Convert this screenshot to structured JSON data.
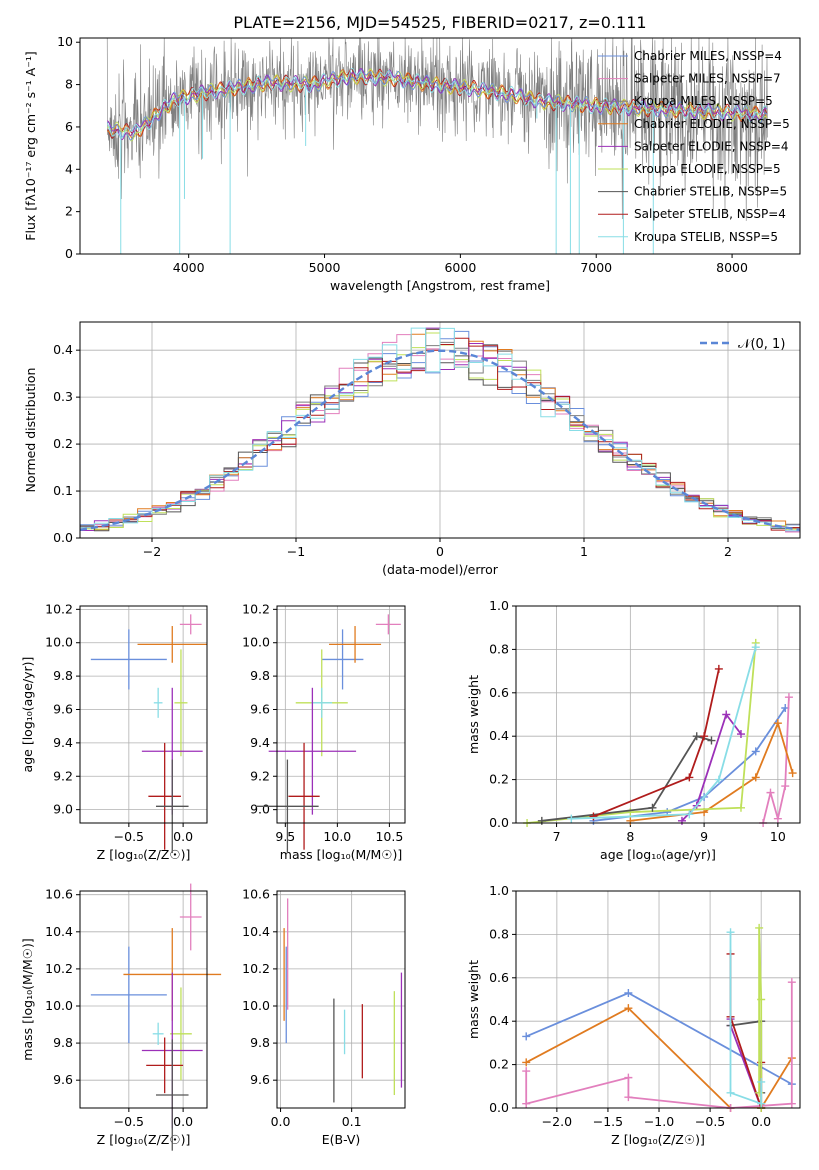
{
  "figure": {
    "title": "PLATE=2156, MJD=54525, FIBERID=0217, z=0.111"
  },
  "colors": {
    "chabrier_miles": "#6a8fdc",
    "salpeter_miles": "#e27fbd",
    "kroupa_miles": "#7f7f7f",
    "chabrier_elodie": "#e07b20",
    "salpeter_elodie": "#9b30b8",
    "kroupa_elodie": "#bfe05a",
    "chabrier_stelib": "#555555",
    "salpeter_stelib": "#b01c1c",
    "kroupa_stelib": "#88dde6",
    "normal_curve": "#5a86d6",
    "grid": "#b0b0b0"
  },
  "chart_data": [
    {
      "id": "spectrum",
      "type": "line",
      "xlabel": "wavelength [Angstrom, rest frame]",
      "ylabel": "Flux [fλ10⁻¹⁷ erg cm⁻² s⁻¹ A⁻¹]",
      "xlim": [
        3200,
        8500
      ],
      "ylim": [
        0,
        10.2
      ],
      "xticks": [
        4000,
        5000,
        6000,
        7000,
        8000
      ],
      "yticks": [
        0,
        2,
        4,
        6,
        8,
        10
      ],
      "grid": false,
      "legend_position": "right",
      "legend": [
        {
          "label": "Chabrier MILES, NSSP=4",
          "color_key": "chabrier_miles"
        },
        {
          "label": "Salpeter MILES, NSSP=7",
          "color_key": "salpeter_miles"
        },
        {
          "label": "Kroupa MILES, NSSP=5",
          "color_key": "kroupa_miles"
        },
        {
          "label": "Chabrier ELODIE, NSSP=5",
          "color_key": "chabrier_elodie"
        },
        {
          "label": "Salpeter ELODIE, NSSP=4",
          "color_key": "salpeter_elodie"
        },
        {
          "label": "Kroupa ELODIE, NSSP=5",
          "color_key": "kroupa_elodie"
        },
        {
          "label": "Chabrier STELIB, NSSP=5",
          "color_key": "chabrier_stelib"
        },
        {
          "label": "Salpeter STELIB, NSSP=4",
          "color_key": "salpeter_stelib"
        },
        {
          "label": "Kroupa STELIB, NSSP=5",
          "color_key": "kroupa_stelib"
        }
      ],
      "continuum": [
        [
          3400,
          5.9
        ],
        [
          3600,
          5.7
        ],
        [
          3700,
          6.2
        ],
        [
          3800,
          6.8
        ],
        [
          3900,
          7.3
        ],
        [
          4100,
          7.6
        ],
        [
          4300,
          7.8
        ],
        [
          4600,
          8.1
        ],
        [
          4900,
          8.0
        ],
        [
          5200,
          8.4
        ],
        [
          5500,
          8.3
        ],
        [
          5800,
          8.0
        ],
        [
          6100,
          7.8
        ],
        [
          6400,
          7.5
        ],
        [
          6600,
          7.2
        ],
        [
          6800,
          7.1
        ],
        [
          7000,
          7.0
        ],
        [
          7300,
          6.9
        ],
        [
          7600,
          6.8
        ],
        [
          7900,
          6.7
        ],
        [
          8200,
          6.6
        ]
      ],
      "absorption_dips": [
        [
          3500,
          0.0
        ],
        [
          3934,
          0.0
        ],
        [
          3969,
          2.6
        ],
        [
          4102,
          4.5
        ],
        [
          4305,
          0.0
        ],
        [
          4861,
          5.1
        ],
        [
          6563,
          6.4
        ],
        [
          6705,
          0.0
        ],
        [
          6810,
          0.0
        ],
        [
          6875,
          0.0
        ],
        [
          7200,
          0.0
        ],
        [
          7420,
          0.0
        ]
      ]
    },
    {
      "id": "residual-histogram",
      "type": "histogram",
      "xlabel": "(data-model)/error",
      "ylabel": "Normed distribution",
      "xlim": [
        -2.5,
        2.5
      ],
      "ylim": [
        0,
        0.46
      ],
      "xticks": [
        -2,
        -1,
        0,
        1,
        2
      ],
      "yticks": [
        0.0,
        0.1,
        0.2,
        0.3,
        0.4
      ],
      "grid": true,
      "legend_position": "top-right",
      "legend": [
        {
          "label": "𝒩(0, 1)",
          "color_key": "normal_curve"
        }
      ],
      "bin_width": 0.1,
      "bin_start": -2.5,
      "series_color_keys": [
        "chabrier_miles",
        "salpeter_miles",
        "kroupa_miles",
        "chabrier_elodie",
        "salpeter_elodie",
        "kroupa_elodie",
        "chabrier_stelib",
        "salpeter_stelib",
        "kroupa_stelib"
      ]
    },
    {
      "id": "age-vs-Z",
      "type": "scatter",
      "xlabel": "Z [log₁₀(Z/Z☉)]",
      "ylabel": "age  [log₁₀(age/yr)]",
      "xlim": [
        -0.95,
        0.22
      ],
      "ylim": [
        8.92,
        10.22
      ],
      "xticks": [
        -0.5,
        0.0
      ],
      "yticks": [
        9.0,
        9.2,
        9.4,
        9.6,
        9.8,
        10.0,
        10.2
      ],
      "grid": true,
      "points": [
        {
          "color_key": "chabrier_miles",
          "x": -0.5,
          "xerr": 0.35,
          "y": 9.9,
          "yerr": 0.18
        },
        {
          "color_key": "salpeter_miles",
          "x": 0.07,
          "xerr": 0.1,
          "y": 10.11,
          "yerr": 0.06
        },
        {
          "color_key": "chabrier_elodie",
          "x": -0.1,
          "xerr": 0.32,
          "y": 9.99,
          "yerr": 0.11
        },
        {
          "color_key": "kroupa_elodie",
          "x": -0.02,
          "xerr": 0.06,
          "y": 9.64,
          "yerr": 0.32
        },
        {
          "color_key": "kroupa_stelib",
          "x": -0.23,
          "xerr": 0.04,
          "y": 9.64,
          "yerr": 0.09
        },
        {
          "color_key": "salpeter_elodie",
          "x": -0.1,
          "xerr": 0.28,
          "y": 9.35,
          "yerr": 0.38
        },
        {
          "color_key": "salpeter_stelib",
          "x": -0.17,
          "xerr": 0.15,
          "y": 9.08,
          "yerr": 0.32
        },
        {
          "color_key": "chabrier_stelib",
          "x": -0.1,
          "xerr": 0.15,
          "y": 9.02,
          "yerr": 0.28
        }
      ]
    },
    {
      "id": "age-vs-mass",
      "type": "scatter",
      "xlabel": "mass [log₁₀(M/M☉)]",
      "ylabel": "",
      "xlim": [
        9.42,
        10.65
      ],
      "ylim": [
        8.92,
        10.22
      ],
      "xticks": [
        9.5,
        10.0,
        10.5
      ],
      "yticks": [
        9.0,
        9.2,
        9.4,
        9.6,
        9.8,
        10.0,
        10.2
      ],
      "grid": true,
      "points": [
        {
          "color_key": "chabrier_miles",
          "x": 10.05,
          "xerr": 0.2,
          "y": 9.9,
          "yerr": 0.18
        },
        {
          "color_key": "salpeter_miles",
          "x": 10.49,
          "xerr": 0.12,
          "y": 10.11,
          "yerr": 0.06
        },
        {
          "color_key": "chabrier_elodie",
          "x": 10.17,
          "xerr": 0.25,
          "y": 9.99,
          "yerr": 0.11
        },
        {
          "color_key": "kroupa_elodie",
          "x": 9.85,
          "xerr": 0.25,
          "y": 9.64,
          "yerr": 0.32
        },
        {
          "color_key": "kroupa_stelib",
          "x": 9.85,
          "xerr": 0.1,
          "y": 9.64,
          "yerr": 0.09
        },
        {
          "color_key": "salpeter_elodie",
          "x": 9.76,
          "xerr": 0.42,
          "y": 9.35,
          "yerr": 0.38
        },
        {
          "color_key": "salpeter_stelib",
          "x": 9.68,
          "xerr": 0.15,
          "y": 9.08,
          "yerr": 0.32
        },
        {
          "color_key": "chabrier_stelib",
          "x": 9.52,
          "xerr": 0.3,
          "y": 9.02,
          "yerr": 0.28
        }
      ]
    },
    {
      "id": "mass-weight-vs-age",
      "type": "line",
      "xlabel": "age  [log₁₀(age/yr)]",
      "ylabel": "mass weight",
      "xlim": [
        6.45,
        10.3
      ],
      "ylim": [
        0,
        1.0
      ],
      "xticks": [
        7,
        8,
        9,
        10
      ],
      "yticks": [
        0.0,
        0.2,
        0.4,
        0.6,
        0.8,
        1.0
      ],
      "grid": true,
      "series": [
        {
          "color_key": "chabrier_miles",
          "x": [
            7.5,
            8.5,
            9.0,
            9.7,
            10.1
          ],
          "y": [
            0.01,
            0.05,
            0.12,
            0.33,
            0.53
          ]
        },
        {
          "color_key": "salpeter_miles",
          "x": [
            9.8,
            9.9,
            10.0,
            10.1,
            10.15
          ],
          "y": [
            0.0,
            0.14,
            0.02,
            0.17,
            0.58
          ]
        },
        {
          "color_key": "chabrier_elodie",
          "x": [
            8.0,
            9.0,
            9.7,
            10.0,
            10.2
          ],
          "y": [
            0.01,
            0.05,
            0.21,
            0.46,
            0.23
          ]
        },
        {
          "color_key": "salpeter_elodie",
          "x": [
            8.7,
            8.9,
            9.3,
            9.5
          ],
          "y": [
            0.01,
            0.08,
            0.5,
            0.41
          ]
        },
        {
          "color_key": "kroupa_elodie",
          "x": [
            6.6,
            8.0,
            9.5,
            9.7
          ],
          "y": [
            0.0,
            0.05,
            0.07,
            0.83
          ]
        },
        {
          "color_key": "chabrier_stelib",
          "x": [
            6.8,
            8.3,
            8.9,
            9.1
          ],
          "y": [
            0.01,
            0.07,
            0.4,
            0.38
          ]
        },
        {
          "color_key": "salpeter_stelib",
          "x": [
            7.5,
            8.8,
            9.0,
            9.2
          ],
          "y": [
            0.03,
            0.21,
            0.4,
            0.71
          ]
        },
        {
          "color_key": "kroupa_stelib",
          "x": [
            7.2,
            8.8,
            9.2,
            9.7
          ],
          "y": [
            0.02,
            0.04,
            0.2,
            0.81
          ]
        }
      ]
    },
    {
      "id": "mass-vs-Z",
      "type": "scatter",
      "xlabel": "Z [log₁₀(Z/Z☉)]",
      "ylabel": "mass [log₁₀(M/M☉)]",
      "xlim": [
        -0.95,
        0.22
      ],
      "ylim": [
        9.45,
        10.62
      ],
      "xticks": [
        -0.5,
        0.0
      ],
      "yticks": [
        9.6,
        9.8,
        10.0,
        10.2,
        10.4,
        10.6
      ],
      "grid": true,
      "points": [
        {
          "color_key": "chabrier_miles",
          "x": -0.5,
          "xerr": 0.35,
          "y": 10.06,
          "yerr": 0.26
        },
        {
          "color_key": "salpeter_miles",
          "x": 0.07,
          "xerr": 0.1,
          "y": 10.48,
          "yerr": 0.18
        },
        {
          "color_key": "chabrier_elodie",
          "x": -0.1,
          "xerr": 0.45,
          "y": 10.17,
          "yerr": 0.25
        },
        {
          "color_key": "kroupa_elodie",
          "x": -0.02,
          "xerr": 0.1,
          "y": 9.85,
          "yerr": 0.25
        },
        {
          "color_key": "kroupa_stelib",
          "x": -0.23,
          "xerr": 0.05,
          "y": 9.85,
          "yerr": 0.06
        },
        {
          "color_key": "salpeter_elodie",
          "x": -0.1,
          "xerr": 0.28,
          "y": 9.76,
          "yerr": 0.42
        },
        {
          "color_key": "salpeter_stelib",
          "x": -0.17,
          "xerr": 0.17,
          "y": 9.68,
          "yerr": 0.15
        },
        {
          "color_key": "chabrier_stelib",
          "x": -0.1,
          "xerr": 0.15,
          "y": 9.52,
          "yerr": 0.3
        }
      ]
    },
    {
      "id": "mass-vs-ebv",
      "type": "scatter",
      "xlabel": "E(B-V)",
      "ylabel": "",
      "xlim": [
        -0.005,
        0.175
      ],
      "ylim": [
        9.45,
        10.62
      ],
      "xticks": [
        0.0,
        0.1
      ],
      "yticks": [
        9.6,
        9.8,
        10.0,
        10.2,
        10.4,
        10.6
      ],
      "grid": true,
      "points": [
        {
          "color_key": "chabrier_elodie",
          "x": 0.005,
          "y": 10.17,
          "yerr": 0.25
        },
        {
          "color_key": "salpeter_miles",
          "x": 0.01,
          "y": 10.28,
          "yerr": 0.3
        },
        {
          "color_key": "chabrier_miles",
          "x": 0.008,
          "y": 10.06,
          "yerr": 0.26
        },
        {
          "color_key": "chabrier_stelib",
          "x": 0.075,
          "y": 9.76,
          "yerr": 0.28
        },
        {
          "color_key": "kroupa_stelib",
          "x": 0.09,
          "y": 9.86,
          "yerr": 0.12
        },
        {
          "color_key": "salpeter_stelib",
          "x": 0.115,
          "y": 9.81,
          "yerr": 0.2
        },
        {
          "color_key": "kroupa_elodie",
          "x": 0.16,
          "y": 9.8,
          "yerr": 0.28
        },
        {
          "color_key": "salpeter_elodie",
          "x": 0.17,
          "y": 9.87,
          "yerr": 0.31
        }
      ]
    },
    {
      "id": "mass-weight-vs-Z",
      "type": "line",
      "xlabel": "Z [log₁₀(Z/Z☉)]",
      "ylabel": "mass weight",
      "xlim": [
        -2.4,
        0.38
      ],
      "ylim": [
        0,
        1.0
      ],
      "xticks": [
        -2.0,
        -1.5,
        -1.0,
        -0.5,
        0.0
      ],
      "yticks": [
        0.0,
        0.2,
        0.4,
        0.6,
        0.8,
        1.0
      ],
      "grid": true,
      "series": [
        {
          "color_key": "chabrier_miles",
          "x": [
            -2.3,
            -1.3,
            0.3
          ],
          "y": [
            0.33,
            0.53,
            0.11
          ]
        },
        {
          "color_key": "chabrier_elodie",
          "x": [
            -2.3,
            -1.3,
            -0.3,
            0.0,
            0.3
          ],
          "y": [
            0.21,
            0.46,
            0.0,
            0.0,
            0.23
          ]
        },
        {
          "color_key": "salpeter_miles",
          "x": [
            -2.3,
            -2.3,
            -1.3,
            -1.3,
            -0.3,
            0.3,
            0.3
          ],
          "y": [
            0.17,
            0.02,
            0.14,
            0.05,
            0.0,
            0.02,
            0.58
          ]
        },
        {
          "color_key": "salpeter_elodie",
          "x": [
            -0.3,
            -0.3,
            0.0
          ],
          "y": [
            0.41,
            0.38,
            0.0
          ]
        },
        {
          "color_key": "chabrier_stelib",
          "x": [
            -0.3,
            0.0,
            0.0
          ],
          "y": [
            0.38,
            0.4,
            0.07
          ]
        },
        {
          "color_key": "salpeter_stelib",
          "x": [
            -0.3,
            -0.3,
            0.0,
            0.0
          ],
          "y": [
            0.71,
            0.42,
            0.0,
            0.21
          ]
        },
        {
          "color_key": "kroupa_elodie",
          "x": [
            -0.02,
            -0.02,
            0.0,
            0.0
          ],
          "y": [
            0.07,
            0.83,
            0.5,
            0.0
          ]
        },
        {
          "color_key": "kroupa_stelib",
          "x": [
            -0.3,
            -0.3,
            0.0,
            0.0
          ],
          "y": [
            0.81,
            0.07,
            0.02,
            0.12
          ]
        }
      ]
    }
  ]
}
